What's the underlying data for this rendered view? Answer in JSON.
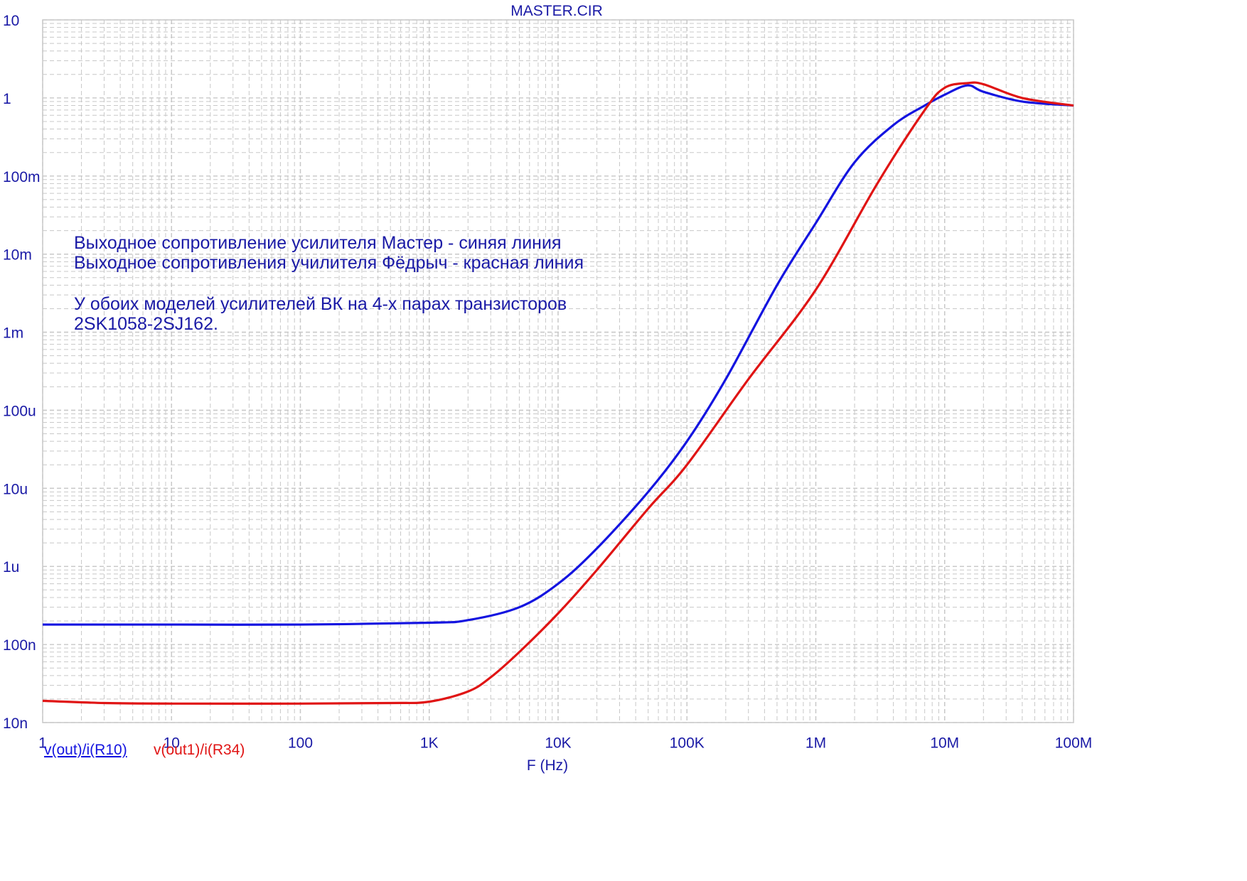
{
  "chart_data": {
    "type": "line",
    "title": "MASTER.CIR",
    "xlabel": "F (Hz)",
    "ylabel": "",
    "x_scale": "log",
    "y_scale": "log",
    "xlim": [
      1,
      100000000
    ],
    "ylim": [
      1e-08,
      10
    ],
    "grid": true,
    "x_tick_labels": [
      "1",
      "10",
      "100",
      "1K",
      "10K",
      "100K",
      "1M",
      "10M",
      "100M"
    ],
    "y_tick_labels": [
      "10",
      "1",
      "100m",
      "10m",
      "1m",
      "100u",
      "10u",
      "1u",
      "100n",
      "10n"
    ],
    "legend_position": "bottom-left",
    "colors": {
      "grid": "#c8c8c8",
      "text": "#1a1aa6",
      "blue": "#1414e0",
      "red": "#e01414"
    },
    "annotations": [
      "Выходное сопротивление усилителя Мастер - синяя линия",
      "Выходное сопротивления училителя Фёдрыч - красная линия",
      "У обоих моделей усилителей ВК на 4-х парах транзисторов",
      "2SK1058-2SJ162."
    ],
    "series": [
      {
        "name": "v(out)/i(R10)",
        "color": "#1414e0",
        "x": [
          1,
          10,
          100,
          1000,
          2000,
          5000,
          10000,
          20000,
          50000,
          100000,
          200000,
          500000,
          1000000,
          2000000,
          4000000,
          7000000,
          10000000,
          15000000,
          20000000,
          40000000,
          100000000
        ],
        "y": [
          1.8e-07,
          1.8e-07,
          1.8e-07,
          1.9e-07,
          2.05e-07,
          3e-07,
          6e-07,
          1.7e-06,
          9e-06,
          4e-05,
          0.00025,
          0.004,
          0.025,
          0.15,
          0.45,
          0.8,
          1.1,
          1.45,
          1.2,
          0.9,
          0.8
        ]
      },
      {
        "name": "v(out1)/i(R34)",
        "color": "#e01414",
        "x": [
          1,
          3,
          10,
          100,
          500,
          1000,
          2000,
          3000,
          5000,
          10000,
          20000,
          50000,
          100000,
          300000,
          1000000,
          3000000,
          7000000,
          10000000,
          15000000,
          20000000,
          40000000,
          100000000
        ],
        "y": [
          1.9e-08,
          1.78e-08,
          1.75e-08,
          1.75e-08,
          1.78e-08,
          1.85e-08,
          2.5e-08,
          3.8e-08,
          8e-08,
          2.5e-07,
          9e-07,
          5.5e-06,
          2e-05,
          0.00025,
          0.0035,
          0.08,
          0.7,
          1.35,
          1.55,
          1.5,
          1.0,
          0.8
        ]
      }
    ]
  }
}
